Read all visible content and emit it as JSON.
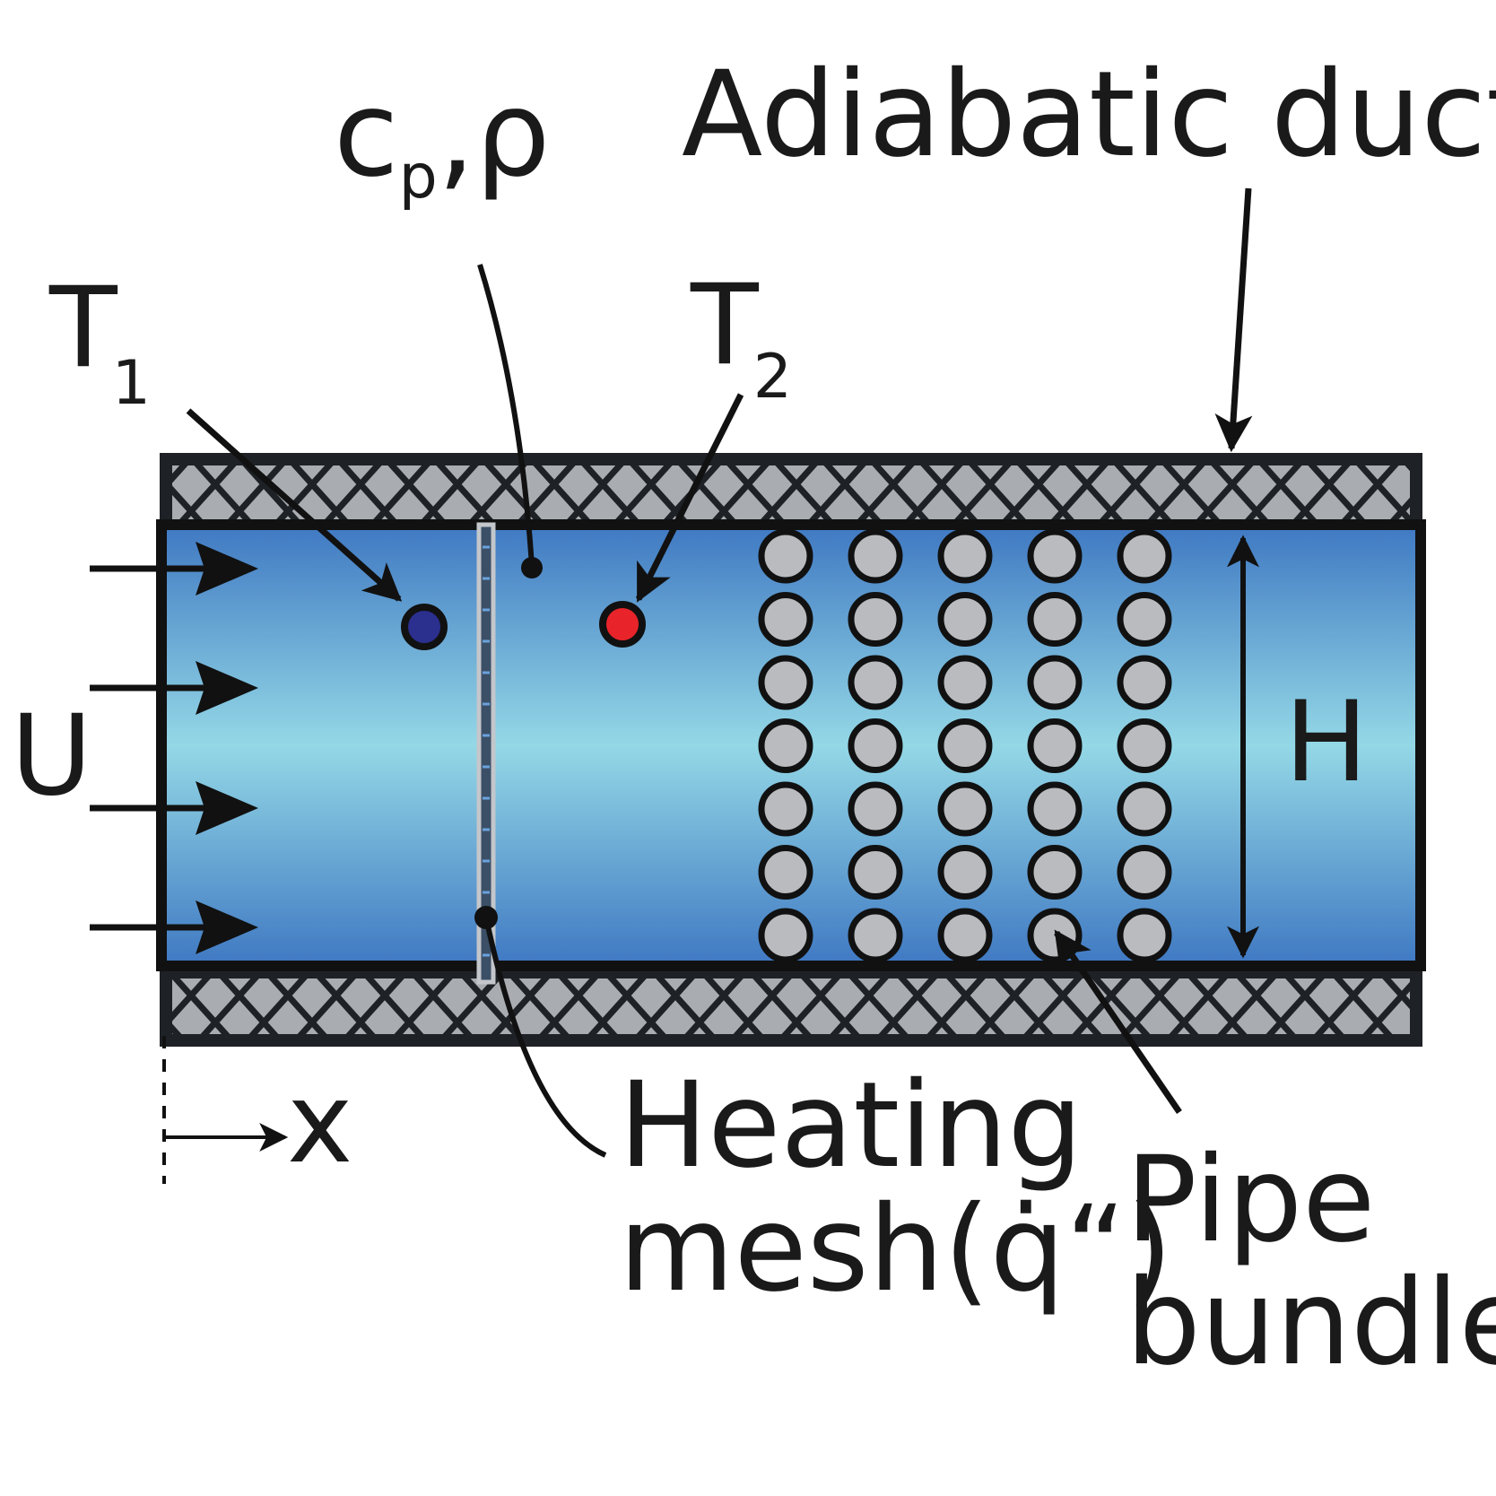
{
  "labels": {
    "adiabatic_duct": "Adiabatic duct",
    "cp": "c",
    "cp_sub": "p",
    "cp_rest": ",ρ",
    "t1": "T",
    "t1_sub": "1",
    "t2": "T",
    "t2_sub": "2",
    "velocity": "U",
    "height": "H",
    "axis": "x",
    "heating_line1": "Heating",
    "heating_line2": "mesh(q̇“)",
    "pipe_line1": "Pipe",
    "pipe_line2": "bundle"
  },
  "colors": {
    "ink": "#1a1a1a",
    "duct_fill_edge": "#3f78c2",
    "duct_fill_center": "#94d8e6",
    "wall_fill": "#a9adb2",
    "pipe_fill": "#b9bbbf",
    "probe_t1": "#2b2f8e",
    "probe_t2": "#e8242a"
  },
  "bundle": {
    "columns": 5,
    "rows": 7
  },
  "inflow_arrows": 4
}
